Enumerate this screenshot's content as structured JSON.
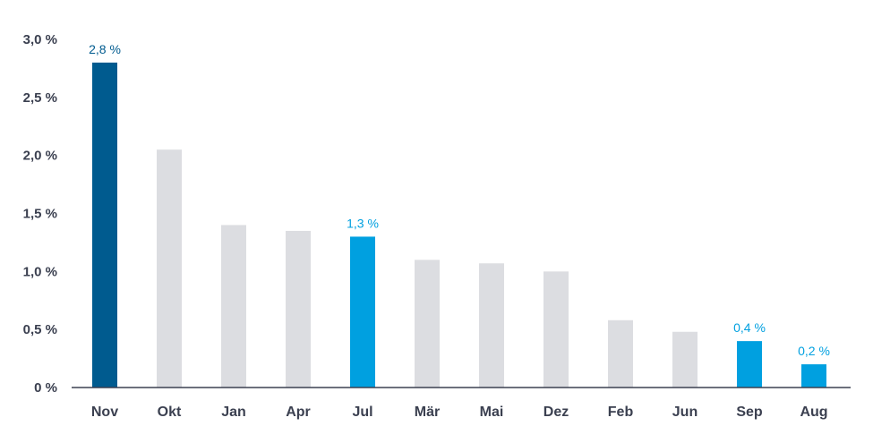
{
  "chart_data": {
    "type": "bar",
    "categories": [
      "Nov",
      "Okt",
      "Jan",
      "Apr",
      "Jul",
      "Mär",
      "Mai",
      "Dez",
      "Feb",
      "Jun",
      "Sep",
      "Aug"
    ],
    "values": [
      2.8,
      2.05,
      1.4,
      1.35,
      1.3,
      1.1,
      1.07,
      1.0,
      0.58,
      0.48,
      0.4,
      0.2
    ],
    "bar_colors": [
      "#005b8f",
      "#dcdde1",
      "#dcdde1",
      "#dcdde1",
      "#00a0e0",
      "#dcdde1",
      "#dcdde1",
      "#dcdde1",
      "#dcdde1",
      "#dcdde1",
      "#00a0e0",
      "#00a0e0"
    ],
    "data_labels": [
      "2,8 %",
      "",
      "",
      "",
      "1,3 %",
      "",
      "",
      "",
      "",
      "",
      "0,4 %",
      "0,2 %"
    ],
    "label_colors": [
      "#005b8f",
      "",
      "",
      "",
      "#00a0e0",
      "",
      "",
      "",
      "",
      "",
      "#00a0e0",
      "#00a0e0"
    ],
    "y_ticks": [
      0,
      0.5,
      1.0,
      1.5,
      2.0,
      2.5,
      3.0
    ],
    "y_tick_labels": [
      "0 %",
      "0,5 %",
      "1,0 %",
      "1,5 %",
      "2,0 %",
      "2,5 %",
      "3,0 %"
    ],
    "ylim": [
      0,
      3.0
    ],
    "title": "",
    "xlabel": "",
    "ylabel": "",
    "grid": false,
    "axis_color": "#3b4050"
  }
}
